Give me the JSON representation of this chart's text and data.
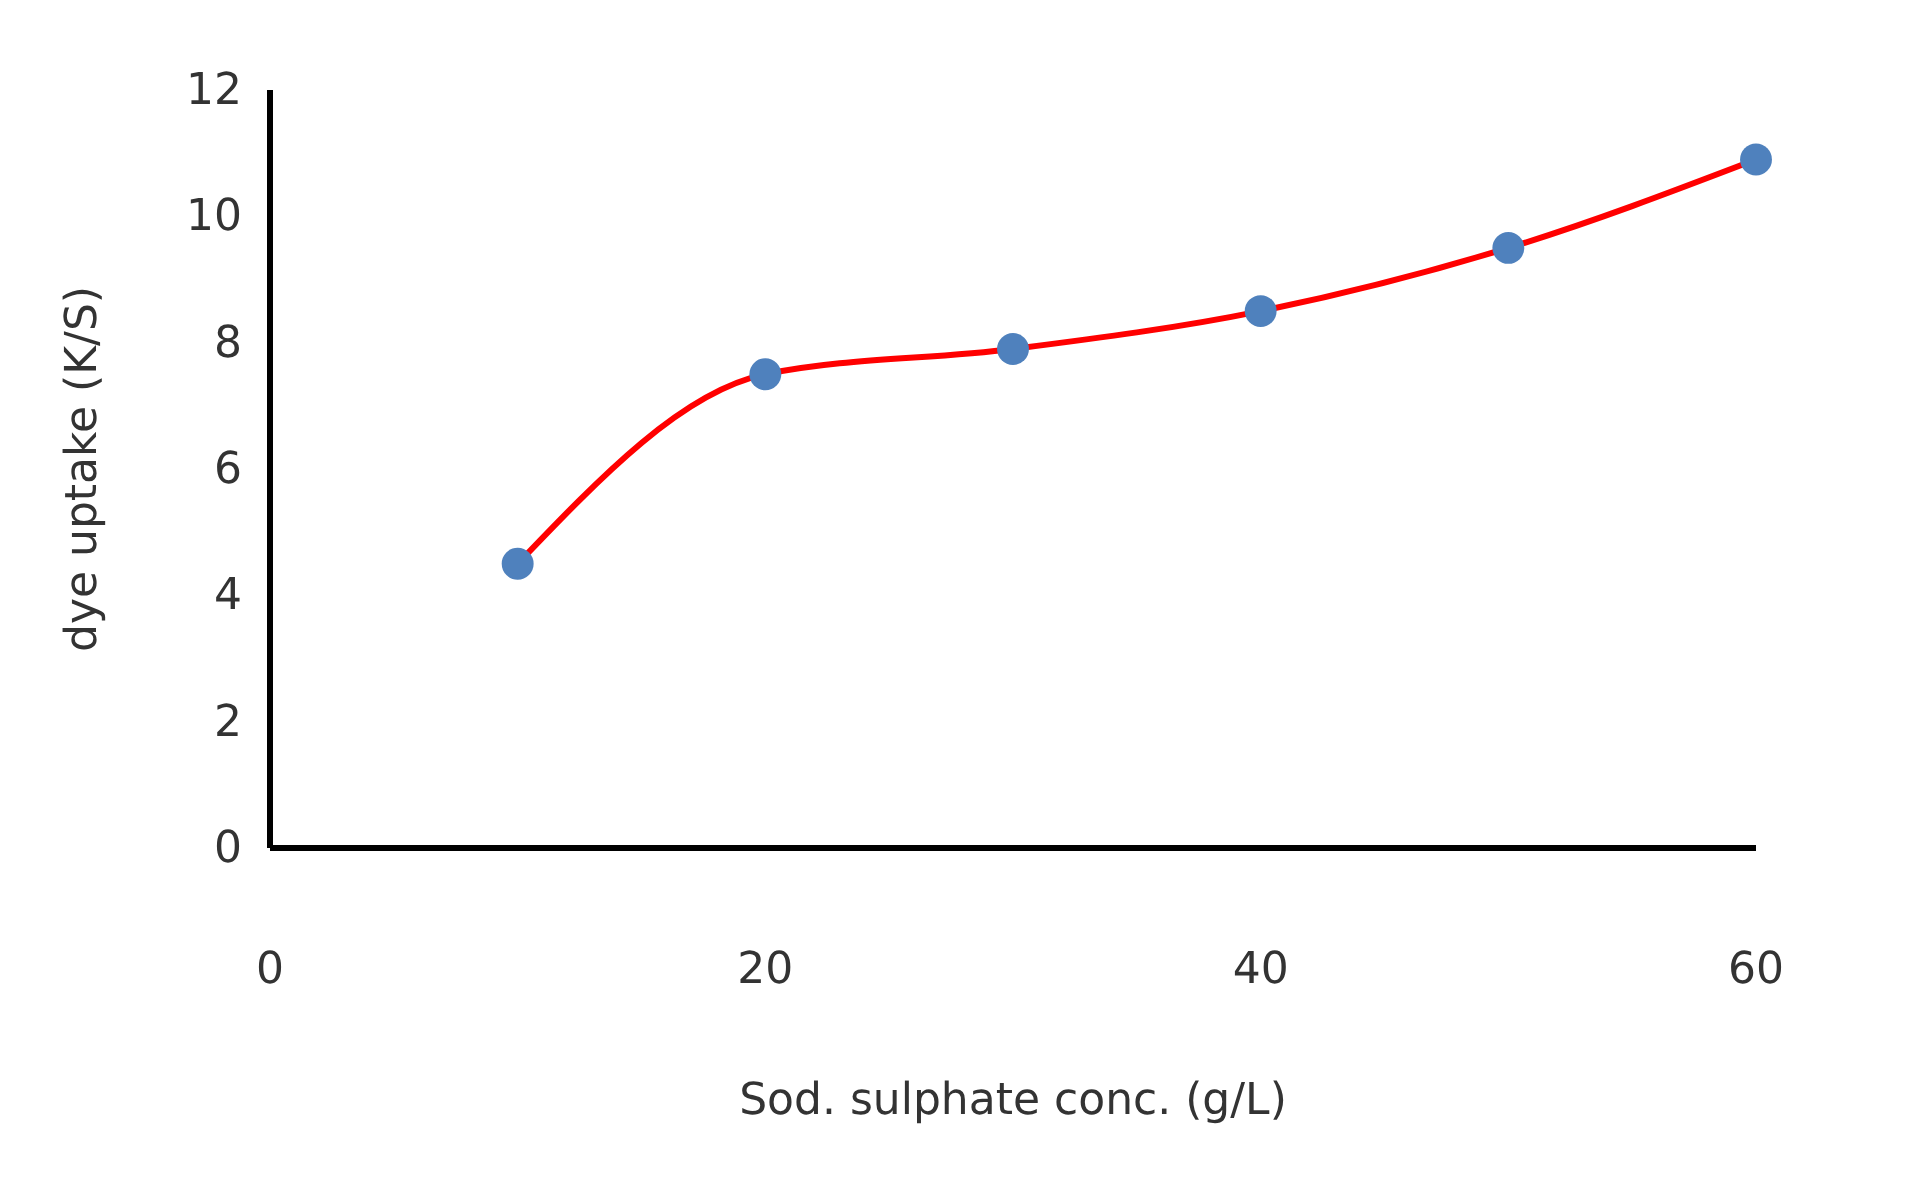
{
  "chart_data": {
    "type": "line",
    "xlabel": "Sod. sulphate conc. (g/L)",
    "ylabel": "dye uptake (K/S)",
    "x": [
      10,
      20,
      30,
      40,
      50,
      60
    ],
    "series": [
      {
        "color": "#ff0000",
        "colors": [
          "#4f81bd",
          "#4f81bd",
          "#4f81bd",
          "#4f81bd",
          "#4f81bd",
          "#4f81bd"
        ],
        "values": [
          4.5,
          7.5,
          7.9,
          8.5,
          9.5,
          10.9
        ]
      }
    ],
    "xlim": [
      0,
      60
    ],
    "xticks": [
      0,
      20,
      40,
      60
    ],
    "ylim": [
      0,
      12
    ],
    "yticks": [
      0,
      2,
      4,
      6,
      8,
      10,
      12
    ],
    "grid": false,
    "legend": false,
    "marker": "circle",
    "line_style": "solid"
  }
}
